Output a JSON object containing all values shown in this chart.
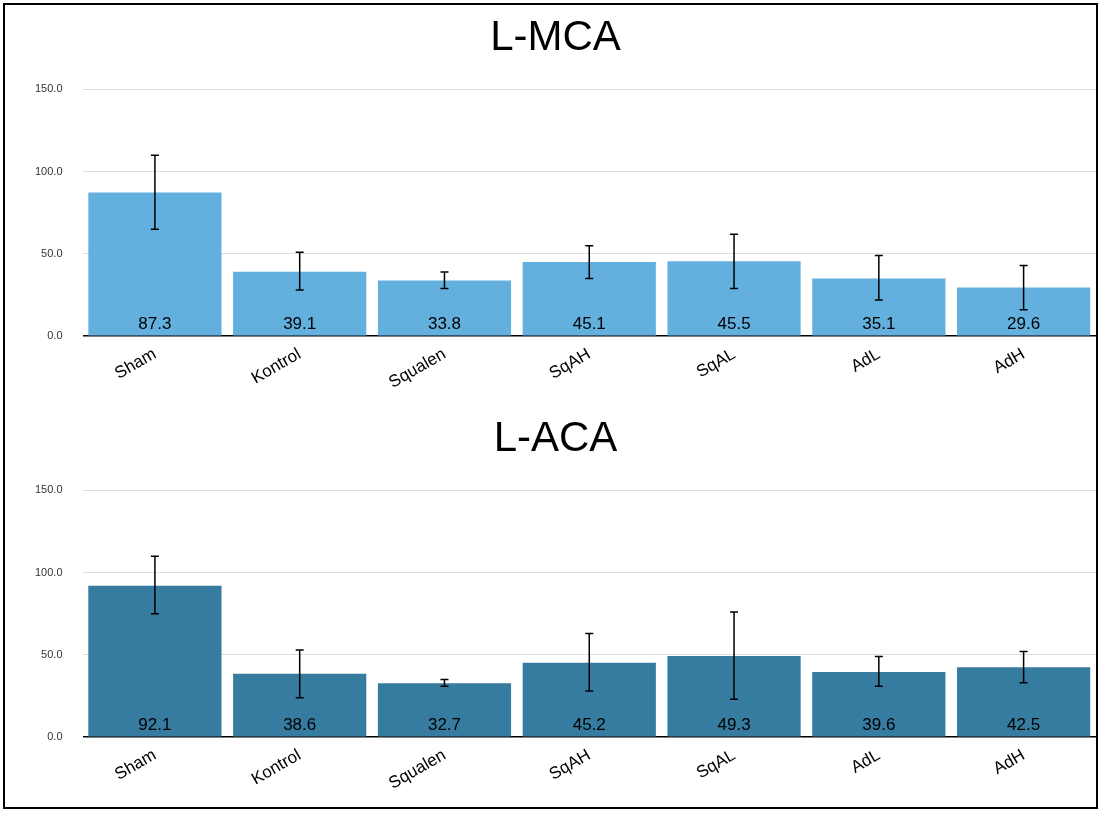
{
  "chart_data": [
    {
      "type": "bar",
      "title": "L-MCA",
      "categories": [
        "Sham",
        "Kontrol",
        "Squalen",
        "SqAH",
        "SqAL",
        "AdL",
        "AdH"
      ],
      "values": [
        87.3,
        39.1,
        33.8,
        45.1,
        45.5,
        35.1,
        29.6
      ],
      "color": "#63b0df",
      "errors": [
        [
          65,
          110
        ],
        [
          28,
          51
        ],
        [
          29,
          39
        ],
        [
          35,
          55
        ],
        [
          29,
          62
        ],
        [
          22,
          49
        ],
        [
          16,
          43
        ]
      ],
      "ylim": [
        0,
        150
      ],
      "yticks": [
        {
          "value": 0,
          "label": "0.0"
        },
        {
          "value": 50,
          "label": "50.0"
        },
        {
          "value": 100,
          "label": "100.0"
        },
        {
          "value": 150,
          "label": "150.0"
        }
      ],
      "grid": "y",
      "data_labels": true
    },
    {
      "type": "bar",
      "title": "L-ACA",
      "categories": [
        "Sham",
        "Kontrol",
        "Squalen",
        "SqAH",
        "SqAL",
        "AdL",
        "AdH"
      ],
      "values": [
        92.1,
        38.6,
        32.7,
        45.2,
        49.3,
        39.6,
        42.5
      ],
      "color": "#367ca0",
      "errors": [
        [
          75,
          110
        ],
        [
          24,
          53
        ],
        [
          31,
          35
        ],
        [
          28,
          63
        ],
        [
          23,
          76
        ],
        [
          31,
          49
        ],
        [
          33,
          52
        ]
      ],
      "ylim": [
        0,
        150
      ],
      "yticks": [
        {
          "value": 0,
          "label": "0.0"
        },
        {
          "value": 50,
          "label": "50.0"
        },
        {
          "value": 100,
          "label": "100.0"
        },
        {
          "value": 150,
          "label": "150.0"
        }
      ],
      "grid": "y",
      "data_labels": true
    }
  ]
}
